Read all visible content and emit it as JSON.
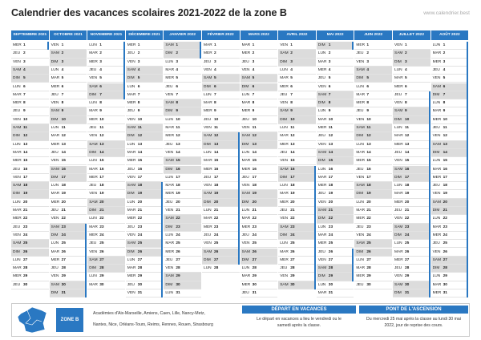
{
  "header": {
    "title": "Calendrier des vacances scolaires 2021-2022 de la zone B",
    "site": "www.calendrier.best"
  },
  "shaded_weekdays": [
    "SAM",
    "DIM"
  ],
  "months": [
    {
      "name": "SEPTEMBRE 2021",
      "weekdays": [
        "MER",
        "JEU",
        "VEN",
        "SAM",
        "DIM",
        "LUN",
        "MAR",
        "MER",
        "JEU",
        "VEN",
        "SAM",
        "DIM",
        "LUN",
        "MAR",
        "MER",
        "JEU",
        "VEN",
        "SAM",
        "DIM",
        "LUN",
        "MAR",
        "MER",
        "JEU",
        "VEN",
        "SAM",
        "DIM",
        "LUN",
        "MAR",
        "MER",
        "JEU"
      ],
      "dates": [
        1,
        2,
        3,
        4,
        5,
        6,
        7,
        8,
        9,
        10,
        11,
        12,
        13,
        14,
        15,
        16,
        17,
        18,
        19,
        20,
        21,
        22,
        23,
        24,
        25,
        26,
        27,
        28,
        29,
        30
      ],
      "vacations": [
        [
          1,
          1
        ]
      ]
    },
    {
      "name": "OCTOBRE 2021",
      "weekdays": [
        "VEN",
        "SAM",
        "DIM",
        "LUN",
        "MAR",
        "MER",
        "JEU",
        "VEN",
        "SAM",
        "DIM",
        "LUN",
        "MAR",
        "MER",
        "JEU",
        "VEN",
        "SAM",
        "DIM",
        "LUN",
        "MAR",
        "MER",
        "JEU",
        "VEN",
        "SAM",
        "DIM",
        "LUN",
        "MAR",
        "MER",
        "JEU",
        "VEN",
        "SAM",
        "DIM"
      ],
      "dates": [
        1,
        2,
        3,
        4,
        5,
        6,
        7,
        8,
        9,
        10,
        11,
        12,
        13,
        14,
        15,
        16,
        17,
        18,
        19,
        20,
        21,
        22,
        23,
        24,
        25,
        26,
        27,
        28,
        29,
        30,
        31
      ],
      "vacations": [
        [
          23,
          31
        ]
      ]
    },
    {
      "name": "NOVEMBRE 2021",
      "weekdays": [
        "LUN",
        "MAR",
        "MER",
        "JEU",
        "VEN",
        "SAM",
        "DIM",
        "LUN",
        "MAR",
        "MER",
        "JEU",
        "VEN",
        "SAM",
        "DIM",
        "LUN",
        "MAR",
        "MER",
        "JEU",
        "VEN",
        "SAM",
        "DIM",
        "LUN",
        "MAR",
        "MER",
        "JEU",
        "VEN",
        "SAM",
        "DIM",
        "LUN",
        "MAR"
      ],
      "dates": [
        1,
        2,
        3,
        4,
        5,
        6,
        7,
        8,
        9,
        10,
        11,
        12,
        13,
        14,
        15,
        16,
        17,
        18,
        19,
        20,
        21,
        22,
        23,
        24,
        25,
        26,
        27,
        28,
        29,
        30
      ],
      "vacations": [
        [
          1,
          7
        ]
      ]
    },
    {
      "name": "DÉCEMBRE 2021",
      "weekdays": [
        "MER",
        "JEU",
        "VEN",
        "SAM",
        "DIM",
        "LUN",
        "MAR",
        "MER",
        "JEU",
        "VEN",
        "SAM",
        "DIM",
        "LUN",
        "MAR",
        "MER",
        "JEU",
        "VEN",
        "SAM",
        "DIM",
        "LUN",
        "MAR",
        "MER",
        "JEU",
        "VEN",
        "SAM",
        "DIM",
        "LUN",
        "MAR",
        "MER",
        "JEU",
        "VEN"
      ],
      "dates": [
        1,
        2,
        3,
        4,
        5,
        6,
        7,
        8,
        9,
        10,
        11,
        12,
        13,
        14,
        15,
        16,
        17,
        18,
        19,
        20,
        21,
        22,
        23,
        24,
        25,
        26,
        27,
        28,
        29,
        30,
        31
      ],
      "vacations": [
        [
          18,
          31
        ]
      ]
    },
    {
      "name": "JANVIER 2022",
      "weekdays": [
        "SAM",
        "DIM",
        "LUN",
        "MAR",
        "MER",
        "JEU",
        "VEN",
        "SAM",
        "DIM",
        "LUN",
        "MAR",
        "MER",
        "JEU",
        "VEN",
        "SAM",
        "DIM",
        "LUN",
        "MAR",
        "MER",
        "JEU",
        "VEN",
        "SAM",
        "DIM",
        "LUN",
        "MAR",
        "MER",
        "JEU",
        "VEN",
        "SAM",
        "DIM",
        "LUN"
      ],
      "dates": [
        1,
        2,
        3,
        4,
        5,
        6,
        7,
        8,
        9,
        10,
        11,
        12,
        13,
        14,
        15,
        16,
        17,
        18,
        19,
        20,
        21,
        22,
        23,
        24,
        25,
        26,
        27,
        28,
        29,
        30,
        31
      ],
      "vacations": [
        [
          1,
          2
        ]
      ]
    },
    {
      "name": "FÉVRIER 2022",
      "weekdays": [
        "MAR",
        "MER",
        "JEU",
        "VEN",
        "SAM",
        "DIM",
        "LUN",
        "MAR",
        "MER",
        "JEU",
        "VEN",
        "SAM",
        "DIM",
        "LUN",
        "MAR",
        "MER",
        "JEU",
        "VEN",
        "SAM",
        "DIM",
        "LUN",
        "MAR",
        "MER",
        "JEU",
        "VEN",
        "SAM",
        "DIM",
        "LUN"
      ],
      "dates": [
        1,
        2,
        3,
        4,
        5,
        6,
        7,
        8,
        9,
        10,
        11,
        12,
        13,
        14,
        15,
        16,
        17,
        18,
        19,
        20,
        21,
        22,
        23,
        24,
        25,
        26,
        27,
        28
      ],
      "vacations": [
        [
          12,
          27
        ]
      ]
    },
    {
      "name": "MARS 2022",
      "weekdays": [
        "MAR",
        "MER",
        "JEU",
        "VEN",
        "SAM",
        "DIM",
        "LUN",
        "MAR",
        "MER",
        "JEU",
        "VEN",
        "SAM",
        "DIM",
        "LUN",
        "MAR",
        "MER",
        "JEU",
        "VEN",
        "SAM",
        "DIM",
        "LUN",
        "MAR",
        "MER",
        "JEU",
        "VEN",
        "SAM",
        "DIM",
        "LUN",
        "MAR",
        "MER",
        "JEU"
      ],
      "dates": [
        1,
        2,
        3,
        4,
        5,
        6,
        7,
        8,
        9,
        10,
        11,
        12,
        13,
        14,
        15,
        16,
        17,
        18,
        19,
        20,
        21,
        22,
        23,
        24,
        25,
        26,
        27,
        28,
        29,
        30,
        31
      ],
      "vacations": []
    },
    {
      "name": "AVRIL 2022",
      "weekdays": [
        "VEN",
        "SAM",
        "DIM",
        "LUN",
        "MAR",
        "MER",
        "JEU",
        "VEN",
        "SAM",
        "DIM",
        "LUN",
        "MAR",
        "MER",
        "JEU",
        "VEN",
        "SAM",
        "DIM",
        "LUN",
        "MAR",
        "MER",
        "JEU",
        "VEN",
        "SAM",
        "DIM",
        "LUN",
        "MAR",
        "MER",
        "JEU",
        "VEN",
        "SAM"
      ],
      "dates": [
        1,
        2,
        3,
        4,
        5,
        6,
        7,
        8,
        9,
        10,
        11,
        12,
        13,
        14,
        15,
        16,
        17,
        18,
        19,
        20,
        21,
        22,
        23,
        24,
        25,
        26,
        27,
        28,
        29,
        30
      ],
      "vacations": [
        [
          16,
          30
        ]
      ]
    },
    {
      "name": "MAI 2022",
      "weekdays": [
        "DIM",
        "LUN",
        "MAR",
        "MER",
        "JEU",
        "VEN",
        "SAM",
        "DIM",
        "LUN",
        "MAR",
        "MER",
        "JEU",
        "VEN",
        "SAM",
        "DIM",
        "LUN",
        "MAR",
        "MER",
        "JEU",
        "VEN",
        "SAM",
        "DIM",
        "LUN",
        "MAR",
        "MER",
        "JEU",
        "VEN",
        "SAM",
        "DIM",
        "LUN",
        "MAR"
      ],
      "dates": [
        1,
        2,
        3,
        4,
        5,
        6,
        7,
        8,
        9,
        10,
        11,
        12,
        13,
        14,
        15,
        16,
        17,
        18,
        19,
        20,
        21,
        22,
        23,
        24,
        25,
        26,
        27,
        28,
        29,
        30,
        31
      ],
      "vacations": [
        [
          1,
          1
        ],
        [
          26,
          29
        ]
      ]
    },
    {
      "name": "JUIN 2022",
      "weekdays": [
        "MER",
        "JEU",
        "VEN",
        "SAM",
        "DIM",
        "LUN",
        "MAR",
        "MER",
        "JEU",
        "VEN",
        "SAM",
        "DIM",
        "LUN",
        "MAR",
        "MER",
        "JEU",
        "VEN",
        "SAM",
        "DIM",
        "LUN",
        "MAR",
        "MER",
        "JEU",
        "VEN",
        "SAM",
        "DIM",
        "LUN",
        "MAR",
        "MER",
        "JEU"
      ],
      "dates": [
        1,
        2,
        3,
        4,
        5,
        6,
        7,
        8,
        9,
        10,
        11,
        12,
        13,
        14,
        15,
        16,
        17,
        18,
        19,
        20,
        21,
        22,
        23,
        24,
        25,
        26,
        27,
        28,
        29,
        30
      ],
      "vacations": []
    },
    {
      "name": "JUILLET 2022",
      "weekdays": [
        "VEN",
        "SAM",
        "DIM",
        "LUN",
        "MAR",
        "MER",
        "JEU",
        "VEN",
        "SAM",
        "DIM",
        "LUN",
        "MAR",
        "MER",
        "JEU",
        "VEN",
        "SAM",
        "DIM",
        "LUN",
        "MAR",
        "MER",
        "JEU",
        "VEN",
        "SAM",
        "DIM",
        "LUN",
        "MAR",
        "MER",
        "JEU",
        "VEN",
        "SAM",
        "DIM"
      ],
      "dates": [
        1,
        2,
        3,
        4,
        5,
        6,
        7,
        8,
        9,
        10,
        11,
        12,
        13,
        14,
        15,
        16,
        17,
        18,
        19,
        20,
        21,
        22,
        23,
        24,
        25,
        26,
        27,
        28,
        29,
        30,
        31
      ],
      "vacations": [
        [
          7,
          31
        ]
      ]
    },
    {
      "name": "AOÛT 2022",
      "weekdays": [
        "LUN",
        "MAR",
        "MER",
        "JEU",
        "VEN",
        "SAM",
        "DIM",
        "LUN",
        "MAR",
        "MER",
        "JEU",
        "VEN",
        "SAM",
        "DIM",
        "LUN",
        "MAR",
        "MER",
        "JEU",
        "VEN",
        "SAM",
        "DIM",
        "LUN",
        "MAR",
        "MER",
        "JEU",
        "VEN",
        "SAM",
        "DIM",
        "LUN",
        "MAR",
        "MER"
      ],
      "dates": [
        1,
        2,
        3,
        4,
        5,
        6,
        7,
        8,
        9,
        10,
        11,
        12,
        13,
        14,
        15,
        16,
        17,
        18,
        19,
        20,
        21,
        22,
        23,
        24,
        25,
        26,
        27,
        28,
        29,
        30,
        31
      ],
      "vacations": [
        [
          1,
          31
        ]
      ]
    }
  ],
  "footer": {
    "zone": "ZONE B",
    "academies": [
      "Académies d'Aix-Marseille, Amiens, Caen, Lille, Nancy-Metz,",
      "Nantes, Nice, Orléans-Tours, Reims, Rennes, Rouen, Strasbourg"
    ],
    "depart": {
      "title": "DÉPART EN VACANCES",
      "text": [
        "Le départ en vacances a lieu le vendredi ou le",
        "samedi après la classe."
      ]
    },
    "pont": {
      "title": "PONT DE L'ASCENSION",
      "text": [
        "Du mercredi 25 mai après la classe au lundi 30 mai",
        "2022, jour de reprise des cours."
      ]
    }
  }
}
